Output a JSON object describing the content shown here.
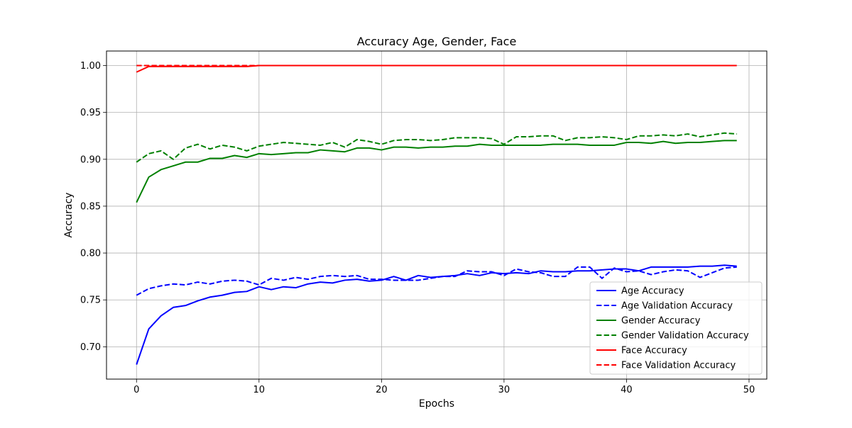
{
  "chart_data": {
    "type": "line",
    "title": "Accuracy Age, Gender, Face",
    "xlabel": "Epochs",
    "ylabel": "Accuracy",
    "xlim": [
      -2.45,
      51.45
    ],
    "ylim": [
      0.6655,
      1.0155
    ],
    "xticks": [
      0,
      10,
      20,
      30,
      40,
      50
    ],
    "yticks": [
      0.7,
      0.75,
      0.8,
      0.85,
      0.9,
      0.95,
      1.0
    ],
    "xtick_labels": [
      "0",
      "10",
      "20",
      "30",
      "40",
      "50"
    ],
    "ytick_labels": [
      "0.70",
      "0.75",
      "0.80",
      "0.85",
      "0.90",
      "0.95",
      "1.00"
    ],
    "grid": true,
    "legend_position": "lower-right",
    "x": [
      0,
      1,
      2,
      3,
      4,
      5,
      6,
      7,
      8,
      9,
      10,
      11,
      12,
      13,
      14,
      15,
      16,
      17,
      18,
      19,
      20,
      21,
      22,
      23,
      24,
      25,
      26,
      27,
      28,
      29,
      30,
      31,
      32,
      33,
      34,
      35,
      36,
      37,
      38,
      39,
      40,
      41,
      42,
      43,
      44,
      45,
      46,
      47,
      48,
      49
    ],
    "series": [
      {
        "name": "Age Accuracy",
        "color": "#0000ff",
        "style": "solid",
        "values": [
          0.681,
          0.719,
          0.733,
          0.742,
          0.744,
          0.749,
          0.753,
          0.755,
          0.758,
          0.759,
          0.764,
          0.761,
          0.764,
          0.763,
          0.767,
          0.769,
          0.768,
          0.771,
          0.772,
          0.77,
          0.771,
          0.775,
          0.771,
          0.776,
          0.774,
          0.775,
          0.776,
          0.778,
          0.776,
          0.779,
          0.778,
          0.779,
          0.778,
          0.781,
          0.78,
          0.78,
          0.781,
          0.781,
          0.782,
          0.783,
          0.783,
          0.781,
          0.785,
          0.785,
          0.785,
          0.785,
          0.786,
          0.786,
          0.787,
          0.786
        ]
      },
      {
        "name": "Age Validation Accuracy",
        "color": "#0000ff",
        "style": "dashed",
        "values": [
          0.755,
          0.762,
          0.765,
          0.767,
          0.766,
          0.769,
          0.767,
          0.77,
          0.771,
          0.77,
          0.766,
          0.773,
          0.771,
          0.774,
          0.772,
          0.775,
          0.776,
          0.775,
          0.776,
          0.772,
          0.772,
          0.771,
          0.771,
          0.771,
          0.773,
          0.775,
          0.775,
          0.781,
          0.78,
          0.78,
          0.776,
          0.783,
          0.78,
          0.779,
          0.775,
          0.775,
          0.785,
          0.785,
          0.773,
          0.784,
          0.78,
          0.781,
          0.777,
          0.78,
          0.782,
          0.781,
          0.774,
          0.779,
          0.784,
          0.785
        ]
      },
      {
        "name": "Gender Accuracy",
        "color": "#008000",
        "style": "solid",
        "values": [
          0.854,
          0.881,
          0.889,
          0.893,
          0.897,
          0.897,
          0.901,
          0.901,
          0.904,
          0.902,
          0.906,
          0.905,
          0.906,
          0.907,
          0.907,
          0.91,
          0.909,
          0.908,
          0.912,
          0.912,
          0.91,
          0.913,
          0.913,
          0.912,
          0.913,
          0.913,
          0.914,
          0.914,
          0.916,
          0.915,
          0.915,
          0.915,
          0.915,
          0.915,
          0.916,
          0.916,
          0.916,
          0.915,
          0.915,
          0.915,
          0.918,
          0.918,
          0.917,
          0.919,
          0.917,
          0.918,
          0.918,
          0.919,
          0.92,
          0.92
        ]
      },
      {
        "name": "Gender Validation Accuracy",
        "color": "#008000",
        "style": "dashed",
        "values": [
          0.897,
          0.906,
          0.909,
          0.9,
          0.912,
          0.916,
          0.911,
          0.915,
          0.913,
          0.909,
          0.914,
          0.916,
          0.918,
          0.917,
          0.916,
          0.915,
          0.918,
          0.913,
          0.921,
          0.919,
          0.916,
          0.92,
          0.921,
          0.921,
          0.92,
          0.921,
          0.923,
          0.923,
          0.923,
          0.922,
          0.916,
          0.924,
          0.924,
          0.925,
          0.925,
          0.92,
          0.923,
          0.923,
          0.924,
          0.923,
          0.921,
          0.925,
          0.925,
          0.926,
          0.925,
          0.927,
          0.924,
          0.926,
          0.928,
          0.927
        ]
      },
      {
        "name": "Face Accuracy",
        "color": "#ff0000",
        "style": "solid",
        "values": [
          0.993,
          0.999,
          0.999,
          0.999,
          0.999,
          0.999,
          0.999,
          0.999,
          0.999,
          0.999,
          1.0,
          1.0,
          1.0,
          1.0,
          1.0,
          1.0,
          1.0,
          1.0,
          1.0,
          1.0,
          1.0,
          1.0,
          1.0,
          1.0,
          1.0,
          1.0,
          1.0,
          1.0,
          1.0,
          1.0,
          1.0,
          1.0,
          1.0,
          1.0,
          1.0,
          1.0,
          1.0,
          1.0,
          1.0,
          1.0,
          1.0,
          1.0,
          1.0,
          1.0,
          1.0,
          1.0,
          1.0,
          1.0,
          1.0,
          1.0
        ]
      },
      {
        "name": "Face Validation Accuracy",
        "color": "#ff0000",
        "style": "dashed",
        "values": [
          1.0,
          1.0,
          1.0,
          1.0,
          1.0,
          1.0,
          1.0,
          1.0,
          1.0,
          1.0,
          1.0,
          1.0,
          1.0,
          1.0,
          1.0,
          1.0,
          1.0,
          1.0,
          1.0,
          1.0,
          1.0,
          1.0,
          1.0,
          1.0,
          1.0,
          1.0,
          1.0,
          1.0,
          1.0,
          1.0,
          1.0,
          1.0,
          1.0,
          1.0,
          1.0,
          1.0,
          1.0,
          1.0,
          1.0,
          1.0,
          1.0,
          1.0,
          1.0,
          1.0,
          1.0,
          1.0,
          1.0,
          1.0,
          1.0,
          1.0
        ]
      }
    ]
  }
}
